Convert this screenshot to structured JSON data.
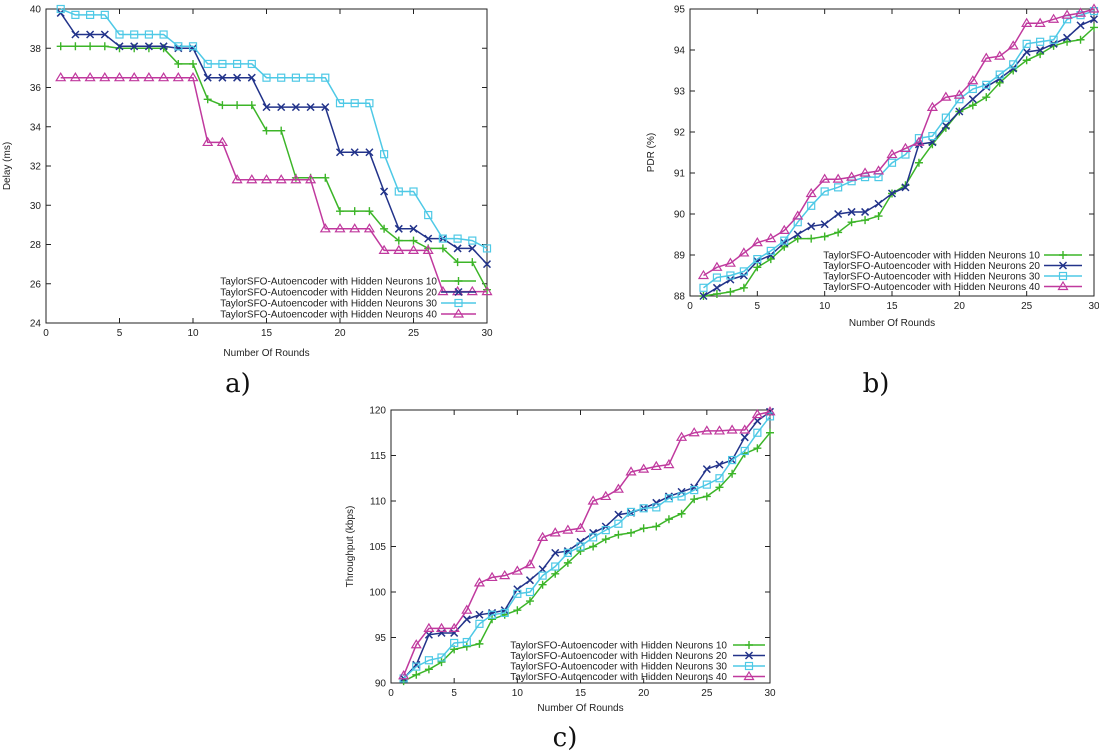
{
  "colors": {
    "s10": "#3cb528",
    "s20": "#22338a",
    "s30": "#4ec9e6",
    "s40": "#c0399e"
  },
  "markers": [
    "plus",
    "x",
    "square",
    "triangle"
  ],
  "chart_data": [
    {
      "type": "line",
      "panel_label": "a)",
      "xlabel": "Number Of Rounds",
      "ylabel": "Delay (ms)",
      "xlim": [
        0,
        30
      ],
      "ylim": [
        24,
        40
      ],
      "xticks": [
        "0",
        "5",
        "10",
        "15",
        "20",
        "25",
        "30"
      ],
      "yticks": [
        "24",
        "26",
        "28",
        "30",
        "32",
        "34",
        "36",
        "38",
        "40"
      ],
      "legend": "bottom-left",
      "grid": false,
      "x": [
        1,
        2,
        3,
        4,
        5,
        6,
        7,
        8,
        9,
        10,
        11,
        12,
        13,
        14,
        15,
        16,
        17,
        18,
        19,
        20,
        21,
        22,
        23,
        24,
        25,
        26,
        27,
        28,
        29,
        30
      ],
      "series": [
        {
          "name": "TaylorSFO-Autoencoder with Hidden Neurons 10",
          "values": [
            38.1,
            38.1,
            38.1,
            38.1,
            38.0,
            38.0,
            38.0,
            38.0,
            37.2,
            37.2,
            35.4,
            35.1,
            35.1,
            35.1,
            33.8,
            33.8,
            31.4,
            31.4,
            31.4,
            29.7,
            29.7,
            29.7,
            28.8,
            28.2,
            28.2,
            27.8,
            27.8,
            27.1,
            27.1,
            25.7
          ]
        },
        {
          "name": "TaylorSFO-Autoencoder with Hidden Neurons 20",
          "values": [
            39.8,
            38.7,
            38.7,
            38.7,
            38.1,
            38.1,
            38.1,
            38.1,
            38.0,
            38.0,
            36.5,
            36.5,
            36.5,
            36.5,
            35.0,
            35.0,
            35.0,
            35.0,
            35.0,
            32.7,
            32.7,
            32.7,
            30.7,
            28.8,
            28.8,
            28.3,
            28.3,
            27.8,
            27.8,
            27.0
          ]
        },
        {
          "name": "TaylorSFO-Autoencoder with Hidden Neurons 30",
          "values": [
            40.0,
            39.7,
            39.7,
            39.7,
            38.7,
            38.7,
            38.7,
            38.7,
            38.1,
            38.1,
            37.2,
            37.2,
            37.2,
            37.2,
            36.5,
            36.5,
            36.5,
            36.5,
            36.5,
            35.2,
            35.2,
            35.2,
            32.6,
            30.7,
            30.7,
            29.5,
            28.3,
            28.3,
            28.2,
            27.8
          ]
        },
        {
          "name": "TaylorSFO-Autoencoder with Hidden Neurons 40",
          "values": [
            36.5,
            36.5,
            36.5,
            36.5,
            36.5,
            36.5,
            36.5,
            36.5,
            36.5,
            36.5,
            33.2,
            33.2,
            31.3,
            31.3,
            31.3,
            31.3,
            31.3,
            31.3,
            28.8,
            28.8,
            28.8,
            28.8,
            27.7,
            27.7,
            27.7,
            27.7,
            25.6,
            25.6,
            25.6,
            25.6
          ]
        }
      ]
    },
    {
      "type": "line",
      "panel_label": "b)",
      "xlabel": "Number Of Rounds",
      "ylabel": "PDR (%)",
      "xlim": [
        0,
        30
      ],
      "ylim": [
        88,
        95
      ],
      "xticks": [
        "0",
        "5",
        "10",
        "15",
        "20",
        "25",
        "30"
      ],
      "yticks": [
        "88",
        "89",
        "90",
        "91",
        "92",
        "93",
        "94",
        "95"
      ],
      "legend": "bottom-right",
      "grid": false,
      "x": [
        1,
        2,
        3,
        4,
        5,
        6,
        7,
        8,
        9,
        10,
        11,
        12,
        13,
        14,
        15,
        16,
        17,
        18,
        19,
        20,
        21,
        22,
        23,
        24,
        25,
        26,
        27,
        28,
        29,
        30
      ],
      "series": [
        {
          "name": "TaylorSFO-Autoencoder with Hidden Neurons 10",
          "values": [
            88.0,
            88.05,
            88.1,
            88.2,
            88.7,
            88.9,
            89.2,
            89.4,
            89.4,
            89.45,
            89.55,
            89.8,
            89.85,
            89.95,
            90.5,
            90.7,
            91.25,
            91.7,
            92.1,
            92.5,
            92.65,
            92.85,
            93.2,
            93.5,
            93.75,
            93.9,
            94.1,
            94.2,
            94.25,
            94.55
          ]
        },
        {
          "name": "TaylorSFO-Autoencoder with Hidden Neurons 20",
          "values": [
            88.0,
            88.2,
            88.4,
            88.5,
            88.85,
            89.0,
            89.3,
            89.5,
            89.7,
            89.75,
            90.0,
            90.05,
            90.05,
            90.25,
            90.5,
            90.65,
            91.7,
            91.75,
            92.15,
            92.5,
            92.8,
            93.1,
            93.3,
            93.55,
            93.95,
            94.0,
            94.15,
            94.3,
            94.6,
            94.75
          ]
        },
        {
          "name": "TaylorSFO-Autoencoder with Hidden Neurons 30",
          "values": [
            88.2,
            88.45,
            88.5,
            88.6,
            88.9,
            89.1,
            89.35,
            89.8,
            90.2,
            90.55,
            90.65,
            90.8,
            90.9,
            90.9,
            91.25,
            91.45,
            91.85,
            91.9,
            92.35,
            92.8,
            93.05,
            93.15,
            93.4,
            93.65,
            94.15,
            94.2,
            94.25,
            94.75,
            94.85,
            94.95
          ]
        },
        {
          "name": "TaylorSFO-Autoencoder with Hidden Neurons 40",
          "values": [
            88.5,
            88.7,
            88.8,
            89.05,
            89.3,
            89.4,
            89.6,
            89.95,
            90.5,
            90.85,
            90.85,
            90.9,
            91.0,
            91.05,
            91.45,
            91.6,
            91.75,
            92.6,
            92.85,
            92.9,
            93.25,
            93.8,
            93.85,
            94.1,
            94.65,
            94.65,
            94.75,
            94.85,
            94.9,
            95.0
          ]
        }
      ]
    },
    {
      "type": "line",
      "panel_label": "c)",
      "xlabel": "Number Of Rounds",
      "ylabel": "Throughput (kbps)",
      "xlim": [
        0,
        30
      ],
      "ylim": [
        90,
        120
      ],
      "xticks": [
        "0",
        "5",
        "10",
        "15",
        "20",
        "25",
        "30"
      ],
      "yticks": [
        "90",
        "95",
        "100",
        "105",
        "110",
        "115",
        "120"
      ],
      "legend": "bottom-right",
      "grid": false,
      "x": [
        1,
        2,
        3,
        4,
        5,
        6,
        7,
        8,
        9,
        10,
        11,
        12,
        13,
        14,
        15,
        16,
        17,
        18,
        19,
        20,
        21,
        22,
        23,
        24,
        25,
        26,
        27,
        28,
        29,
        30
      ],
      "series": [
        {
          "name": "TaylorSFO-Autoencoder with Hidden Neurons 10",
          "values": [
            90.2,
            90.9,
            91.5,
            92.3,
            93.7,
            94.0,
            94.3,
            97.0,
            97.5,
            98.0,
            99.0,
            100.8,
            102.0,
            103.2,
            104.5,
            105.0,
            105.8,
            106.3,
            106.5,
            107.0,
            107.2,
            108.0,
            108.6,
            110.2,
            110.5,
            111.5,
            113.0,
            115.2,
            115.8,
            117.5
          ]
        },
        {
          "name": "TaylorSFO-Autoencoder with Hidden Neurons 20",
          "values": [
            90.5,
            92.0,
            95.3,
            95.5,
            95.5,
            97.0,
            97.5,
            97.7,
            98.0,
            100.3,
            101.3,
            102.5,
            104.3,
            104.5,
            105.5,
            106.5,
            107.2,
            108.5,
            108.7,
            109.2,
            109.8,
            110.5,
            111.0,
            111.5,
            113.5,
            114.0,
            114.5,
            117.0,
            118.8,
            119.8
          ]
        },
        {
          "name": "TaylorSFO-Autoencoder with Hidden Neurons 30",
          "values": [
            90.5,
            91.8,
            92.5,
            92.8,
            94.4,
            94.5,
            96.5,
            97.5,
            97.7,
            99.8,
            100.0,
            101.8,
            102.8,
            104.3,
            105.0,
            106.0,
            106.8,
            107.5,
            108.8,
            109.2,
            109.3,
            110.3,
            110.5,
            111.2,
            111.8,
            112.5,
            114.5,
            115.5,
            117.5,
            119.3
          ]
        },
        {
          "name": "TaylorSFO-Autoencoder with Hidden Neurons 40",
          "values": [
            90.8,
            94.2,
            96.0,
            96.0,
            96.0,
            98.0,
            101.0,
            101.6,
            101.8,
            102.3,
            103.0,
            106.0,
            106.5,
            106.8,
            107.0,
            110.0,
            110.5,
            111.3,
            113.2,
            113.5,
            113.8,
            114.0,
            117.0,
            117.5,
            117.7,
            117.7,
            117.8,
            117.8,
            119.5,
            119.8
          ]
        }
      ]
    }
  ]
}
